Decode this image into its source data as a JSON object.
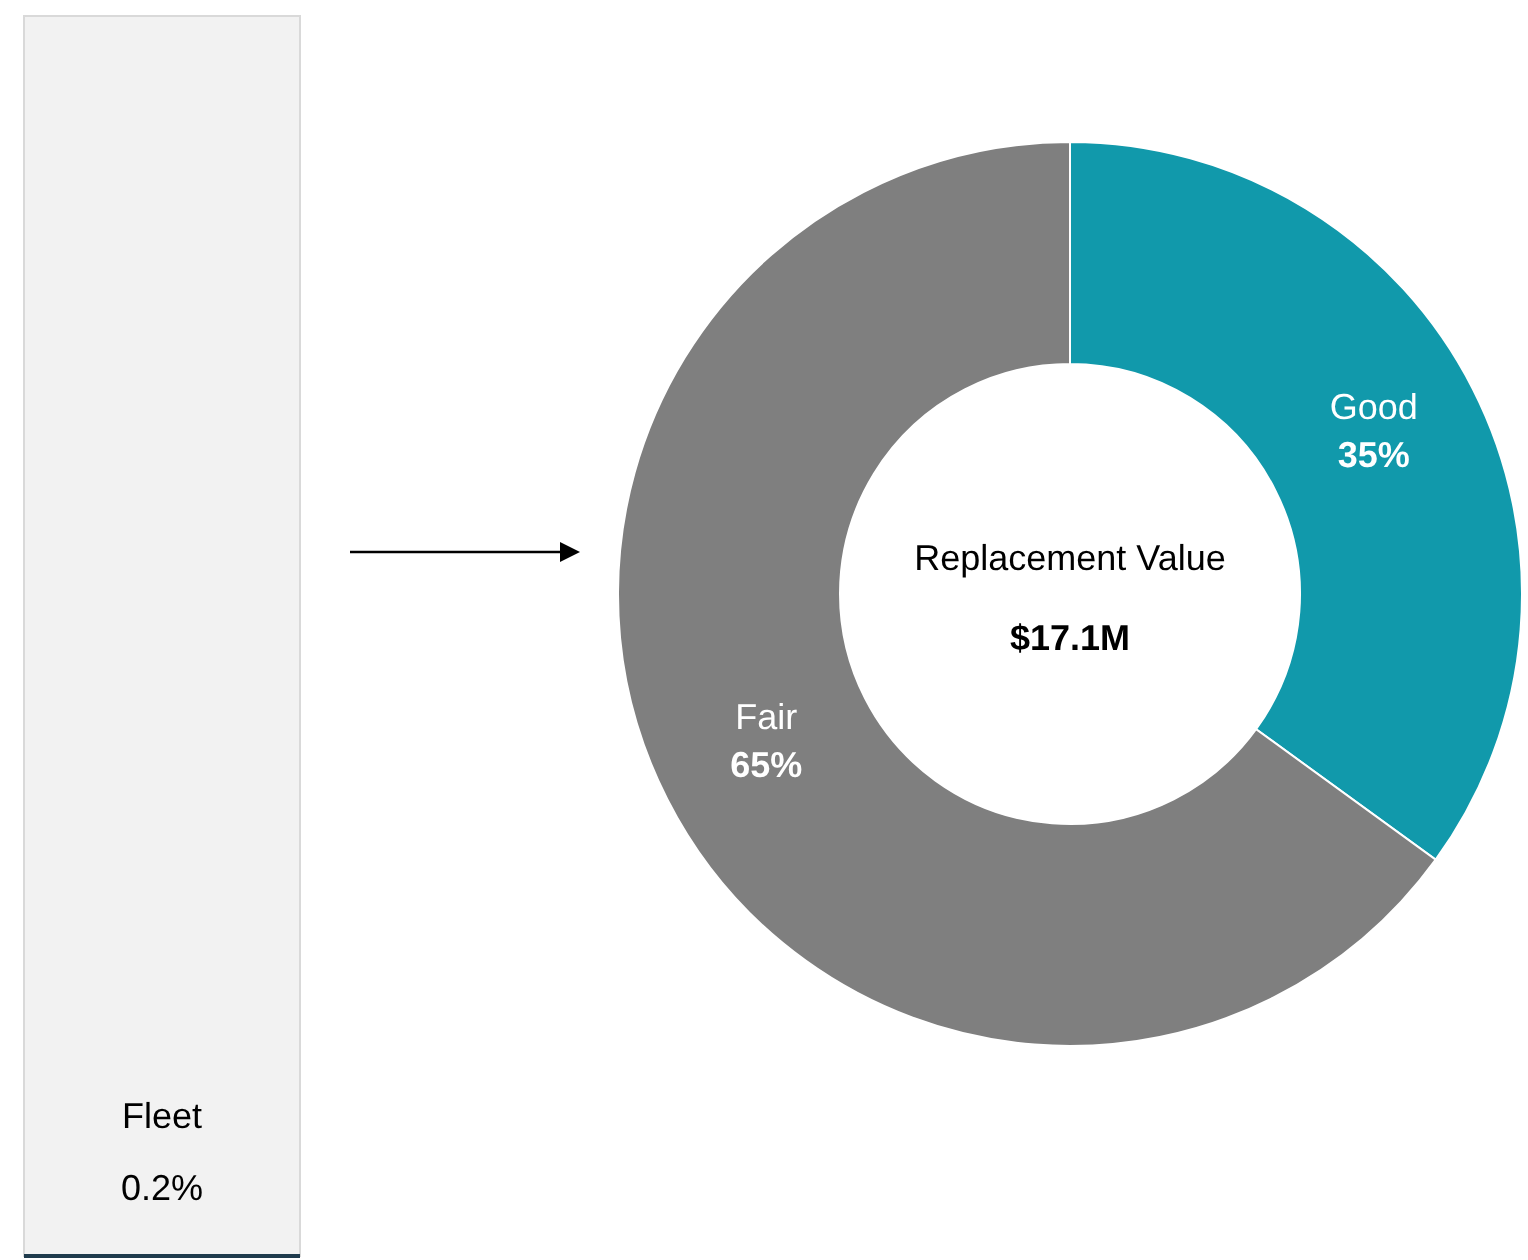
{
  "chart_data": [
    {
      "type": "other",
      "title": "Fleet",
      "annotations": [
        "0.2%"
      ]
    },
    {
      "type": "donut",
      "categories": [
        "Good",
        "Fair"
      ],
      "values": [
        35,
        65
      ],
      "colors": [
        "#1199ab",
        "#7f7f7f"
      ],
      "value_labels": [
        "35%",
        "65%"
      ],
      "annotations": [
        "Replacement Value",
        "$17.1M"
      ]
    }
  ]
}
